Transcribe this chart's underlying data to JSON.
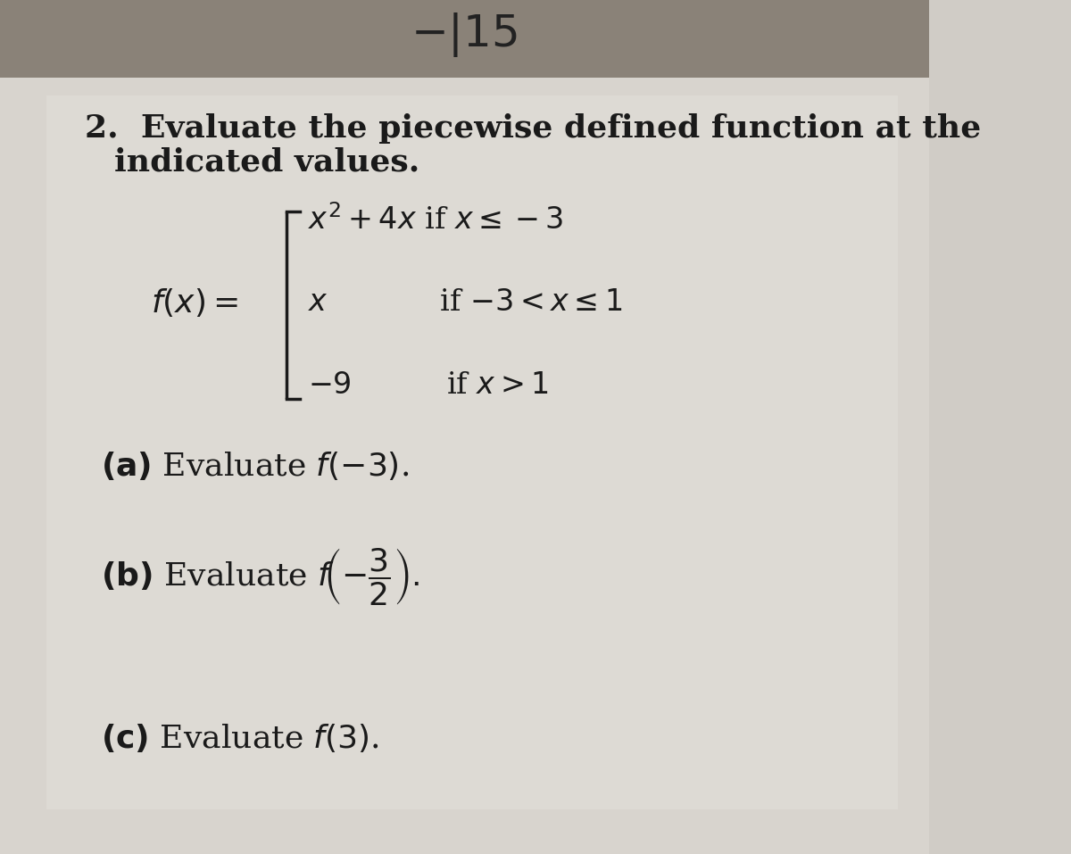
{
  "bg_top_color": "#c8c4bc",
  "bg_main_color": "#dedad4",
  "paper_color": "#e8e5e0",
  "text_color": "#1a1a1a",
  "header_color": "#3a3530",
  "title_line1": "2.  Evaluate the piecewise defined function at the",
  "title_line2": "     indicated values.",
  "piece1": "$x^2 +4x$ if $x \\leq -3$",
  "piece2": "$x$            if $-3 < x \\leq 1$",
  "piece3": "$-9$          if $x > 1$",
  "fx_label": "$f\\!(x) =$",
  "part_a": "(a)  Evaluate $f(-3)$.",
  "part_b_pre": "(b)  Evaluate ",
  "part_c": "(c)  Evaluate $f(3)$.",
  "fontsize_title": 26,
  "fontsize_math": 24,
  "fontsize_parts": 26
}
